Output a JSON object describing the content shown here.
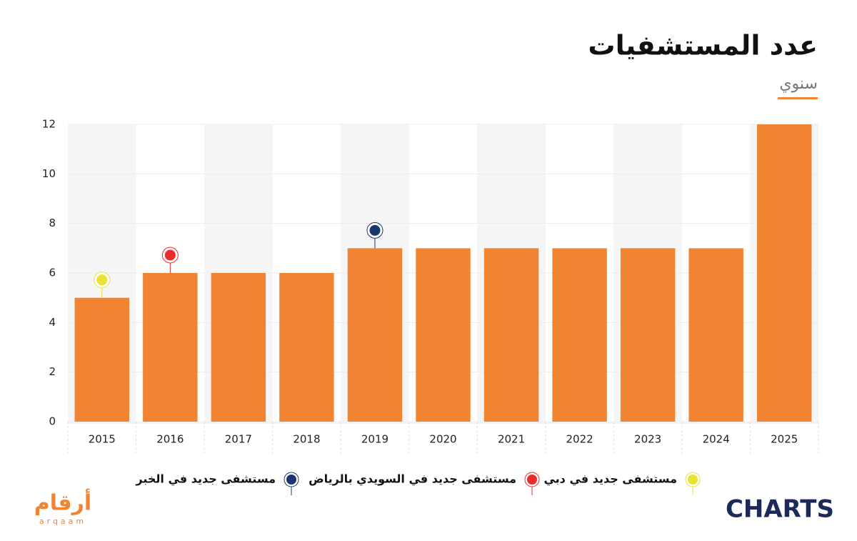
{
  "chart_data": {
    "type": "bar",
    "title": "عدد المستشفيات",
    "subtitle": "سنوي",
    "categories": [
      "2015",
      "2016",
      "2017",
      "2018",
      "2019",
      "2020",
      "2021",
      "2022",
      "2023",
      "2024",
      "2025"
    ],
    "values": [
      5,
      6,
      6,
      6,
      7,
      7,
      7,
      7,
      7,
      7,
      12
    ],
    "color": "#f08433",
    "ylim": [
      0,
      12
    ],
    "yticks": [
      0,
      2,
      4,
      6,
      8,
      10,
      12
    ],
    "grid": true,
    "annotations": [
      {
        "category": "2015",
        "label": "مستشفى جديد في دبي",
        "color": "#e9e234"
      },
      {
        "category": "2016",
        "label": "مستشفى جديد في السويدي بالرياض",
        "color": "#ec2a2a"
      },
      {
        "category": "2019",
        "label": "مستشفى جديد في الخبر",
        "color": "#1c3570"
      }
    ]
  },
  "logos": {
    "left": "أرقام",
    "left_sub": "arqaam",
    "right": "CHARTS"
  }
}
